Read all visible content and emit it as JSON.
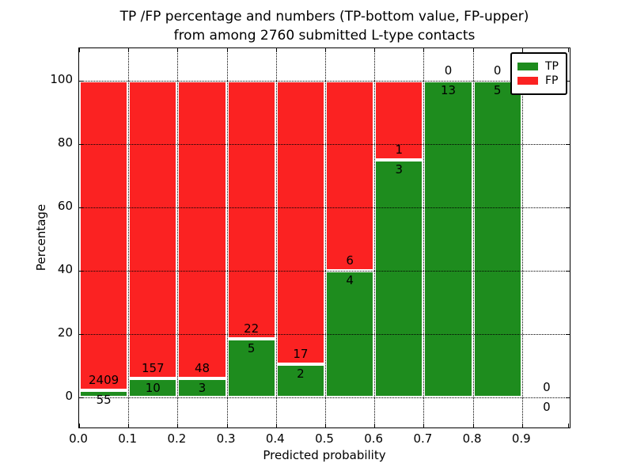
{
  "title": {
    "line1": "TP /FP percentage and numbers (TP-bottom value, FP-upper)",
    "line2": "from among 2760 submitted L-type contacts"
  },
  "legend": {
    "items": [
      {
        "label": "TP",
        "color": "#1e8c1e"
      },
      {
        "label": "FP",
        "color": "#fb2222"
      }
    ]
  },
  "chart_data": {
    "type": "bar",
    "stacked": true,
    "title": "TP /FP percentage and numbers (TP-bottom value, FP-upper) from among 2760 submitted L-type contacts",
    "xlabel": "Predicted probability",
    "ylabel": "Percentage",
    "xlim": [
      0.0,
      1.0
    ],
    "ylim": [
      -10,
      110
    ],
    "grid": true,
    "legend_position": "upper right",
    "x_tick_labels": [
      "0.0",
      "0.1",
      "0.2",
      "0.3",
      "0.4",
      "0.5",
      "0.6",
      "0.7",
      "0.8",
      "0.9"
    ],
    "y_ticks": [
      0,
      20,
      40,
      60,
      80,
      100
    ],
    "bin_edges": [
      0.0,
      0.1,
      0.2,
      0.3,
      0.4,
      0.5,
      0.6,
      0.7,
      0.8,
      0.9,
      1.0
    ],
    "total_contacts": 2760,
    "series": [
      {
        "name": "TP",
        "color": "#1e8c1e",
        "counts": [
          55,
          10,
          3,
          5,
          2,
          4,
          3,
          13,
          5,
          0
        ],
        "percent": [
          2.23,
          5.99,
          5.88,
          18.52,
          10.53,
          40.0,
          75.0,
          100.0,
          100.0,
          0.0
        ]
      },
      {
        "name": "FP",
        "color": "#fb2222",
        "counts": [
          2409,
          157,
          48,
          22,
          17,
          6,
          1,
          0,
          0,
          0
        ],
        "percent": [
          97.77,
          94.01,
          94.12,
          81.48,
          89.47,
          60.0,
          25.0,
          0.0,
          0.0,
          0.0
        ]
      }
    ]
  }
}
